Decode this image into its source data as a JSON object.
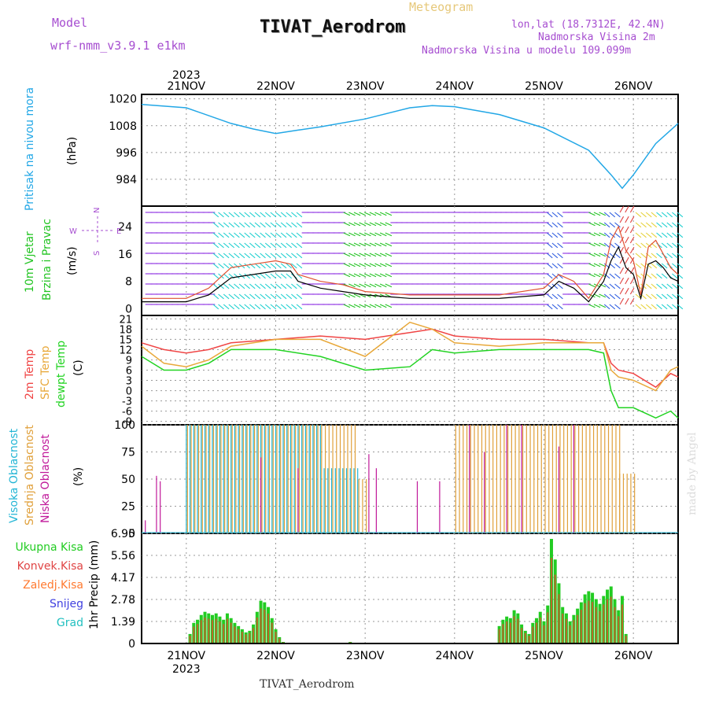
{
  "header": {
    "model_label": "Model",
    "model_value": "wrf-nmm_v3.9.1  e1km",
    "meteogram_label": "Meteogram",
    "station_title": "TIVAT_Aerodrom",
    "lonlat": "lon,lat (18.7312E, 42.4N)",
    "altitude": "Nadmorska Visina 2m",
    "model_altitude": "Nadmorska Visina u modelu 109.099m"
  },
  "footer": {
    "station": "TIVAT_Aerodrom"
  },
  "credit": "made by Angel",
  "colors": {
    "pressure": "#22a7e6",
    "wind_title": "#22c422",
    "wind_arrows": [
      "#8a2be2",
      "#1fd0d0",
      "#22c422",
      "#2f5de0",
      "#e04040",
      "#e6d23a"
    ],
    "temp2m": "#f04545",
    "sfc": "#e8a83a",
    "dew": "#22d322",
    "high_cloud": "#22b5d5",
    "mid_cloud": "#e0a03a",
    "low_cloud": "#c0189a",
    "total_precip": "#22cc22",
    "conv_precip": "#e04545",
    "frozen": "#ff7a30",
    "snow": "#4040e0",
    "hail": "#22c0c0"
  },
  "chart_data": [
    {
      "type": "line",
      "panel": "pressure",
      "ylabel_lines": [
        "Pritisak na nivou mora",
        "(hPa)"
      ],
      "y_ticks": [
        "1020",
        "1008",
        "996",
        "984"
      ],
      "ylim": [
        972,
        1022
      ],
      "x_top_year": "2023",
      "x_ticks": [
        "21NOV",
        "22NOV",
        "23NOV",
        "24NOV",
        "25NOV",
        "26NOV"
      ],
      "x_range_hours": [
        -12,
        132
      ],
      "series": [
        {
          "x": [
            -12,
            0,
            12,
            18,
            24,
            30,
            36,
            48,
            60,
            66,
            72,
            84,
            96,
            108,
            114,
            117,
            120,
            126,
            132
          ],
          "values": [
            1017.5,
            1016,
            1009,
            1006.5,
            1004.5,
            1006,
            1007.5,
            1011,
            1016,
            1017,
            1016.5,
            1013,
            1007,
            997,
            986,
            980,
            986,
            1000,
            1009
          ]
        }
      ]
    },
    {
      "type": "line",
      "panel": "wind",
      "ylabel_lines": [
        "10m Vjetar",
        "Brzina i Pravac",
        "(m/s)"
      ],
      "compass": {
        "w": "W",
        "n": "N",
        "e": "E",
        "s": "S"
      },
      "y_ticks": [
        "24",
        "16",
        "8",
        "0"
      ],
      "ylim": [
        -2,
        30
      ],
      "series": [
        {
          "name": "speed",
          "x": [
            -12,
            0,
            6,
            12,
            18,
            24,
            28,
            30,
            36,
            42,
            48,
            60,
            72,
            84,
            96,
            100,
            104,
            108,
            112,
            114,
            116,
            118,
            120,
            122,
            124,
            126,
            128,
            130,
            132
          ],
          "values": [
            2,
            2,
            4,
            9,
            10,
            11,
            11,
            8,
            6,
            5,
            4,
            3,
            3,
            3,
            4,
            8,
            6,
            2,
            8,
            14,
            18,
            12,
            10,
            3,
            13,
            14,
            12,
            9,
            8
          ]
        },
        {
          "name": "gust",
          "x": [
            -12,
            0,
            6,
            12,
            18,
            24,
            28,
            30,
            36,
            42,
            48,
            60,
            72,
            84,
            96,
            100,
            104,
            108,
            112,
            114,
            116,
            118,
            120,
            122,
            124,
            126,
            128,
            130,
            132
          ],
          "values": [
            3,
            3,
            6,
            12,
            13,
            14,
            13,
            10,
            8,
            7,
            5,
            4,
            4,
            4,
            6,
            10,
            8,
            3,
            10,
            20,
            24,
            17,
            14,
            4,
            18,
            20,
            16,
            12,
            10
          ]
        }
      ]
    },
    {
      "type": "line",
      "panel": "temperature",
      "ylabel_lines": [
        "2m Temp",
        "SFC Temp",
        "dewpt Temp",
        "(C)"
      ],
      "y_ticks": [
        "21",
        "18",
        "15",
        "12",
        "9",
        "6",
        "3",
        "0",
        "-3",
        "-6",
        "-9"
      ],
      "ylim": [
        -10,
        22
      ],
      "series": [
        {
          "name": "2m Temp",
          "x": [
            -12,
            -6,
            0,
            6,
            12,
            24,
            36,
            48,
            60,
            66,
            72,
            84,
            96,
            108,
            112,
            114,
            116,
            120,
            126,
            130,
            132
          ],
          "values": [
            14,
            12,
            11,
            12,
            14,
            15,
            16,
            15,
            17,
            18,
            16,
            15,
            15,
            14,
            14,
            8,
            6,
            5,
            1,
            5,
            4
          ]
        },
        {
          "name": "SFC Temp",
          "x": [
            -12,
            -6,
            0,
            6,
            12,
            24,
            36,
            48,
            60,
            66,
            72,
            84,
            96,
            108,
            112,
            114,
            116,
            120,
            126,
            130,
            132
          ],
          "values": [
            13,
            8,
            7,
            9,
            13,
            15,
            15,
            10,
            20,
            18,
            14,
            13,
            14,
            14,
            14,
            6,
            4,
            3,
            0,
            6,
            7
          ]
        },
        {
          "name": "dewpt Temp",
          "x": [
            -12,
            -6,
            0,
            6,
            12,
            24,
            36,
            48,
            60,
            66,
            72,
            84,
            96,
            108,
            112,
            114,
            116,
            120,
            126,
            130,
            132
          ],
          "values": [
            10,
            6,
            6,
            8,
            12,
            12,
            10,
            6,
            7,
            12,
            11,
            12,
            12,
            12,
            11,
            0,
            -5,
            -5,
            -8,
            -6,
            -8
          ]
        }
      ]
    },
    {
      "type": "bar",
      "panel": "clouds",
      "ylabel_lines": [
        "Visoka Oblacnost",
        "Srednja Oblacnost",
        "Niska Oblacnost",
        "(%)"
      ],
      "y_ticks": [
        "100",
        "75",
        "50",
        "25",
        "0"
      ],
      "ylim": [
        0,
        100
      ],
      "series": [
        {
          "name": "Visoka Oblacnost",
          "segments": [
            [
              0,
              36,
              100
            ],
            [
              37,
              46,
              60
            ]
          ]
        },
        {
          "name": "Srednja Oblacnost",
          "segments": [
            [
              0,
              45,
              100
            ],
            [
              46,
              48,
              50
            ],
            [
              72,
              116,
              100
            ],
            [
              116,
              120,
              55
            ]
          ]
        },
        {
          "name": "Niska Oblacnost",
          "points": [
            [
              -11,
              12
            ],
            [
              -8,
              53
            ],
            [
              -7,
              48
            ],
            [
              20,
              70
            ],
            [
              30,
              60
            ],
            [
              49,
              73
            ],
            [
              51,
              60
            ],
            [
              62,
              48
            ],
            [
              68,
              48
            ],
            [
              76,
              100
            ],
            [
              80,
              75
            ],
            [
              86,
              100
            ],
            [
              90,
              100
            ],
            [
              100,
              80
            ],
            [
              104,
              100
            ]
          ]
        }
      ]
    },
    {
      "type": "bar",
      "panel": "precip",
      "ylabel_lines": [
        "1hr Precip (mm)"
      ],
      "legend": [
        "Ukupna  Kisa",
        "Konvek.Kisa",
        "Zaledj.Kisa",
        "Snijeg",
        "Grad"
      ],
      "y_ticks": [
        "6.95",
        "5.56",
        "4.17",
        "2.78",
        "1.39",
        "0"
      ],
      "ylim": [
        0,
        6.95
      ],
      "x_bottom_year": "2023",
      "x_ticks": [
        "21NOV",
        "22NOV",
        "23NOV",
        "24NOV",
        "25NOV",
        "26NOV"
      ],
      "series": [
        {
          "name": "Ukupna Kisa",
          "values": [
            [
              1,
              0.6
            ],
            [
              2,
              1.3
            ],
            [
              3,
              1.5
            ],
            [
              4,
              1.8
            ],
            [
              5,
              2.0
            ],
            [
              6,
              1.9
            ],
            [
              7,
              1.8
            ],
            [
              8,
              1.9
            ],
            [
              9,
              1.7
            ],
            [
              10,
              1.5
            ],
            [
              11,
              1.9
            ],
            [
              12,
              1.6
            ],
            [
              13,
              1.3
            ],
            [
              14,
              1.1
            ],
            [
              15,
              0.9
            ],
            [
              16,
              0.7
            ],
            [
              17,
              0.8
            ],
            [
              18,
              1.2
            ],
            [
              19,
              2.0
            ],
            [
              20,
              2.7
            ],
            [
              21,
              2.6
            ],
            [
              22,
              2.3
            ],
            [
              23,
              1.6
            ],
            [
              24,
              0.9
            ],
            [
              25,
              0.4
            ],
            [
              26,
              0.1
            ],
            [
              44,
              0.1
            ],
            [
              84,
              1.1
            ],
            [
              85,
              1.5
            ],
            [
              86,
              1.7
            ],
            [
              87,
              1.6
            ],
            [
              88,
              2.1
            ],
            [
              89,
              1.9
            ],
            [
              90,
              1.2
            ],
            [
              91,
              0.8
            ],
            [
              92,
              0.6
            ],
            [
              93,
              1.3
            ],
            [
              94,
              1.6
            ],
            [
              95,
              2.0
            ],
            [
              96,
              1.4
            ],
            [
              97,
              2.4
            ],
            [
              98,
              6.6
            ],
            [
              99,
              5.3
            ],
            [
              100,
              3.8
            ],
            [
              101,
              2.3
            ],
            [
              102,
              1.9
            ],
            [
              103,
              1.4
            ],
            [
              104,
              1.8
            ],
            [
              105,
              2.2
            ],
            [
              106,
              2.6
            ],
            [
              107,
              3.1
            ],
            [
              108,
              3.3
            ],
            [
              109,
              3.2
            ],
            [
              110,
              2.8
            ],
            [
              111,
              2.5
            ],
            [
              112,
              3.0
            ],
            [
              113,
              3.4
            ],
            [
              114,
              3.6
            ],
            [
              115,
              2.8
            ],
            [
              116,
              2.1
            ],
            [
              117,
              3.0
            ],
            [
              118,
              0.6
            ]
          ]
        }
      ]
    }
  ]
}
